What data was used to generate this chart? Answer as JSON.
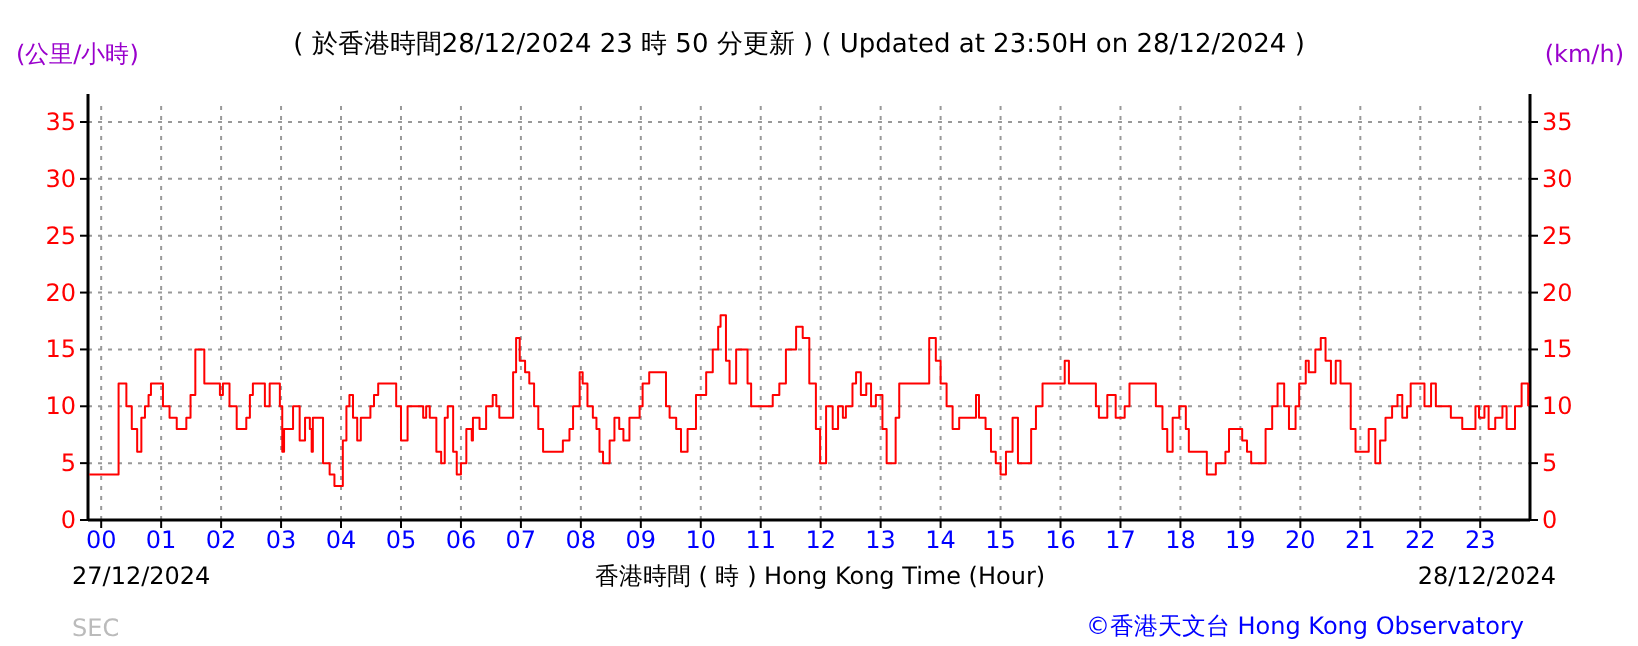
{
  "chart_data": {
    "type": "step",
    "title": "( 於香港時間28/12/2024 23 時 50 分更新 ) ( Updated at 23:50H on 28/12/2024 )",
    "ylabel": "(公里/小時)",
    "y2label": "(km/h)",
    "xlabel": "香港時間 ( 時 )  Hong Kong Time (Hour)",
    "annotations": [
      "27/12/2024",
      "28/12/2024",
      "SEC",
      "©香港天文台 Hong Kong Observatory"
    ],
    "xlim": [
      -0.22,
      23.83
    ],
    "xticks": [
      {
        "value": 0,
        "label": "00"
      },
      {
        "value": 1,
        "label": "01"
      },
      {
        "value": 2,
        "label": "02"
      },
      {
        "value": 3,
        "label": "03"
      },
      {
        "value": 4,
        "label": "04"
      },
      {
        "value": 5,
        "label": "05"
      },
      {
        "value": 6,
        "label": "06"
      },
      {
        "value": 7,
        "label": "07"
      },
      {
        "value": 8,
        "label": "08"
      },
      {
        "value": 9,
        "label": "09"
      },
      {
        "value": 10,
        "label": "10"
      },
      {
        "value": 11,
        "label": "11"
      },
      {
        "value": 12,
        "label": "12"
      },
      {
        "value": 13,
        "label": "13"
      },
      {
        "value": 14,
        "label": "14"
      },
      {
        "value": 15,
        "label": "15"
      },
      {
        "value": 16,
        "label": "16"
      },
      {
        "value": 17,
        "label": "17"
      },
      {
        "value": 18,
        "label": "18"
      },
      {
        "value": 19,
        "label": "19"
      },
      {
        "value": 20,
        "label": "20"
      },
      {
        "value": 21,
        "label": "21"
      },
      {
        "value": 22,
        "label": "22"
      },
      {
        "value": 23,
        "label": "23"
      }
    ],
    "ylim": [
      0,
      35
    ],
    "yticks": [
      0,
      5,
      10,
      15,
      20,
      25,
      30,
      35
    ],
    "y2lim": [
      0,
      35
    ],
    "y2ticks": [
      0,
      5,
      10,
      15,
      20,
      25,
      30,
      35
    ],
    "grid": true,
    "series": [
      {
        "color": "#ff0000",
        "x": [
          -0.2,
          0.11,
          0.29,
          0.38,
          0.42,
          0.51,
          0.6,
          0.67,
          0.73,
          0.79,
          0.83,
          0.98,
          1.03,
          1.14,
          1.26,
          1.38,
          1.42,
          1.49,
          1.57,
          1.7,
          1.72,
          1.9,
          1.98,
          2.03,
          2.14,
          2.22,
          2.26,
          2.37,
          2.42,
          2.48,
          2.53,
          2.7,
          2.73,
          2.81,
          2.92,
          2.98,
          3.02,
          3.05,
          3.14,
          3.2,
          3.24,
          3.31,
          3.4,
          3.48,
          3.51,
          3.53,
          3.7,
          3.81,
          3.89,
          3.98,
          4.03,
          4.09,
          4.14,
          4.2,
          4.27,
          4.33,
          4.42,
          4.49,
          4.55,
          4.62,
          4.87,
          4.92,
          5.0,
          5.09,
          5.11,
          5.31,
          5.37,
          5.42,
          5.48,
          5.53,
          5.59,
          5.67,
          5.73,
          5.78,
          5.87,
          5.93,
          6.0,
          6.09,
          6.18,
          6.2,
          6.31,
          6.42,
          6.53,
          6.59,
          6.64,
          6.81,
          6.87,
          6.92,
          6.98,
          7.07,
          7.14,
          7.22,
          7.29,
          7.37,
          7.64,
          7.7,
          7.81,
          7.87,
          7.98,
          8.03,
          8.11,
          8.2,
          8.26,
          8.31,
          8.37,
          8.48,
          8.56,
          8.64,
          8.71,
          8.81,
          8.92,
          8.98,
          9.03,
          9.14,
          9.31,
          9.42,
          9.48,
          9.59,
          9.67,
          9.78,
          9.92,
          10.09,
          10.2,
          10.29,
          10.33,
          10.42,
          10.48,
          10.59,
          10.7,
          10.78,
          10.84,
          11.09,
          11.2,
          11.31,
          11.42,
          11.59,
          11.7,
          11.81,
          11.92,
          11.99,
          12.09,
          12.2,
          12.29,
          12.37,
          12.42,
          12.53,
          12.59,
          12.67,
          12.76,
          12.84,
          12.92,
          13.03,
          13.1,
          13.25,
          13.31,
          13.7,
          13.81,
          13.92,
          14.0,
          14.1,
          14.2,
          14.31,
          14.53,
          14.59,
          14.64,
          14.75,
          14.84,
          14.92,
          15.0,
          15.09,
          15.2,
          15.29,
          15.42,
          15.51,
          15.59,
          15.7,
          15.92,
          16.07,
          16.14,
          16.53,
          16.59,
          16.64,
          16.78,
          16.92,
          17.07,
          17.15,
          17.48,
          17.59,
          17.7,
          17.78,
          17.87,
          17.98,
          18.09,
          18.14,
          18.37,
          18.44,
          18.59,
          18.75,
          18.81,
          18.98,
          19.03,
          19.11,
          19.18,
          19.37,
          19.42,
          19.53,
          19.62,
          19.73,
          19.81,
          19.92,
          19.98,
          20.09,
          20.14,
          20.25,
          20.34,
          20.42,
          20.51,
          20.59,
          20.67,
          20.78,
          20.84,
          20.92,
          21.09,
          21.14,
          21.25,
          21.33,
          21.42,
          21.53,
          21.62,
          21.7,
          21.78,
          21.84,
          21.98,
          22.07,
          22.18,
          22.26,
          22.42,
          22.51,
          22.64,
          22.7,
          22.87,
          22.92,
          22.98,
          23.07,
          23.14,
          23.25,
          23.37,
          23.44,
          23.53,
          23.58,
          23.69,
          23.8
        ],
        "values": [
          4,
          4,
          12,
          12,
          10,
          8,
          6,
          9,
          10,
          11,
          12,
          12,
          10,
          9,
          8,
          8,
          9,
          11,
          15,
          15,
          12,
          12,
          11,
          12,
          10,
          10,
          8,
          8,
          9,
          11,
          12,
          12,
          10,
          12,
          12,
          10,
          6,
          8,
          8,
          10,
          10,
          7,
          9,
          8,
          6,
          9,
          5,
          4,
          3,
          3,
          7,
          10,
          11,
          9,
          7,
          9,
          9,
          10,
          11,
          12,
          12,
          10,
          7,
          7,
          10,
          10,
          9,
          10,
          9,
          9,
          6,
          5,
          9,
          10,
          6,
          4,
          5,
          8,
          7,
          9,
          8,
          10,
          11,
          10,
          9,
          9,
          13,
          16,
          14,
          13,
          12,
          10,
          8,
          6,
          6,
          7,
          8,
          10,
          13,
          12,
          10,
          9,
          8,
          6,
          5,
          7,
          9,
          8,
          7,
          9,
          9,
          10,
          12,
          13,
          13,
          10,
          9,
          8,
          6,
          8,
          11,
          13,
          15,
          17,
          18,
          14,
          12,
          15,
          15,
          12,
          10,
          10,
          11,
          12,
          15,
          17,
          16,
          12,
          8,
          5,
          10,
          8,
          10,
          9,
          10,
          12,
          13,
          11,
          12,
          10,
          11,
          8,
          5,
          9,
          12,
          12,
          16,
          14,
          12,
          10,
          8,
          9,
          9,
          11,
          9,
          8,
          6,
          5,
          4,
          6,
          9,
          5,
          5,
          8,
          10,
          12,
          12,
          14,
          12,
          12,
          10,
          9,
          11,
          9,
          10,
          12,
          12,
          10,
          8,
          6,
          9,
          10,
          8,
          6,
          6,
          4,
          5,
          6,
          8,
          8,
          7,
          6,
          5,
          5,
          8,
          10,
          12,
          10,
          8,
          10,
          12,
          14,
          13,
          15,
          16,
          14,
          12,
          14,
          12,
          12,
          8,
          6,
          6,
          8,
          5,
          7,
          9,
          10,
          11,
          9,
          10,
          12,
          12,
          10,
          12,
          10,
          10,
          9,
          9,
          8,
          8,
          10,
          9,
          10,
          8,
          9,
          10,
          8,
          8,
          10,
          12,
          10
        ]
      }
    ]
  }
}
